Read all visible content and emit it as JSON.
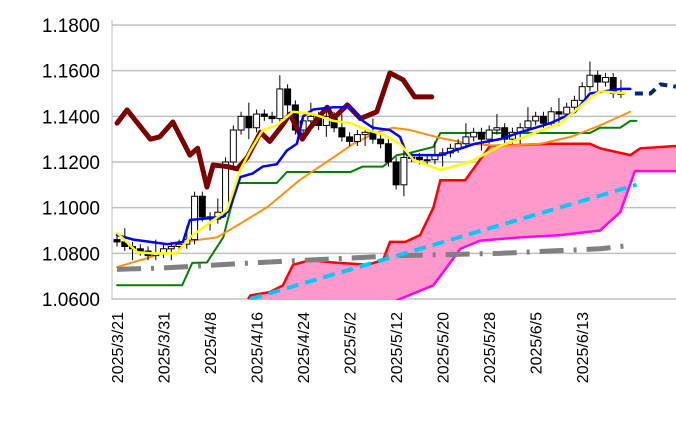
{
  "chart_data": {
    "type": "line",
    "title": "",
    "xlabel": "",
    "ylabel": "",
    "ylim": [
      1.06,
      1.18
    ],
    "yticks": [
      "1.0600",
      "1.0800",
      "1.1000",
      "1.1200",
      "1.1400",
      "1.1600",
      "1.1800"
    ],
    "ytick_values": [
      1.06,
      1.08,
      1.1,
      1.12,
      1.14,
      1.16,
      1.18
    ],
    "xlim_index": [
      -0.65,
      72.1
    ],
    "xticks": [
      {
        "i": 0,
        "label": "2025/3/21"
      },
      {
        "i": 6,
        "label": "2025/3/31"
      },
      {
        "i": 12,
        "label": "2025/4/8"
      },
      {
        "i": 18,
        "label": "2025/4/16"
      },
      {
        "i": 24,
        "label": "2025/4/24"
      },
      {
        "i": 30,
        "label": "2025/5/2"
      },
      {
        "i": 36,
        "label": "2025/5/12"
      },
      {
        "i": 42,
        "label": "2025/5/20"
      },
      {
        "i": 48,
        "label": "2025/5/28"
      },
      {
        "i": 54,
        "label": "2025/6/5"
      },
      {
        "i": 60,
        "label": "2025/6/13"
      }
    ],
    "grid": "horizontal",
    "candles": {
      "close": [
        1.085,
        1.083,
        1.082,
        1.081,
        1.079,
        1.08,
        1.082,
        1.083,
        1.084,
        1.086,
        1.105,
        1.096,
        1.095,
        1.098,
        1.12,
        1.134,
        1.14,
        1.135,
        1.141,
        1.14,
        1.139,
        1.152,
        1.145,
        1.134,
        1.138,
        1.14,
        1.136,
        1.14,
        1.135,
        1.131,
        1.129,
        1.132,
        1.133,
        1.13,
        1.128,
        1.12,
        1.11,
        1.122,
        1.122,
        1.121,
        1.121,
        1.123,
        1.124,
        1.126,
        1.128,
        1.131,
        1.133,
        1.13,
        1.134,
        1.135,
        1.13,
        1.133,
        1.135,
        1.138,
        1.14,
        1.137,
        1.142,
        1.141,
        1.144,
        1.147,
        1.153,
        1.158,
        1.155,
        1.157,
        1.15,
        1.15
      ],
      "up_color": "#ffffff",
      "down_color": "#000000"
    },
    "series": [
      {
        "name": "chikou",
        "color": "#7b0000",
        "width": 5,
        "dash": "",
        "points": [
          [
            0,
            1.137
          ],
          [
            1.3,
            1.1428
          ],
          [
            4.3,
            1.13
          ],
          [
            5.5,
            1.131
          ],
          [
            7.2,
            1.1375
          ],
          [
            9.4,
            1.123
          ],
          [
            10.4,
            1.126
          ],
          [
            11.6,
            1.109
          ],
          [
            12.4,
            1.1187
          ],
          [
            14.2,
            1.118
          ],
          [
            15.5,
            1.117
          ],
          [
            16.8,
            1.122
          ],
          [
            18.5,
            1.133
          ],
          [
            19.7,
            1.129
          ],
          [
            21.3,
            1.136
          ],
          [
            22.3,
            1.141
          ],
          [
            23.9,
            1.13
          ],
          [
            24.9,
            1.135
          ],
          [
            27.1,
            1.144
          ],
          [
            27.9,
            1.139
          ],
          [
            29.7,
            1.145
          ],
          [
            31.4,
            1.139
          ],
          [
            33.5,
            1.142
          ],
          [
            35.2,
            1.159
          ],
          [
            36.9,
            1.156
          ],
          [
            38.4,
            1.1485
          ],
          [
            40.6,
            1.1485
          ]
        ]
      },
      {
        "name": "tenkan",
        "color": "#0000ff",
        "width": 2.5,
        "dash": "",
        "points": [
          [
            0,
            1.088
          ],
          [
            2.1,
            1.086
          ],
          [
            4.3,
            1.085
          ],
          [
            6.5,
            1.084
          ],
          [
            8.5,
            1.085
          ],
          [
            9.4,
            1.0946
          ],
          [
            13.7,
            1.096
          ],
          [
            14.6,
            1.1
          ],
          [
            15.9,
            1.1134
          ],
          [
            17.5,
            1.115
          ],
          [
            18.8,
            1.118
          ],
          [
            20.6,
            1.119
          ],
          [
            21.9,
            1.125
          ],
          [
            23.2,
            1.128
          ],
          [
            24,
            1.14
          ],
          [
            25.3,
            1.143
          ],
          [
            27.9,
            1.144
          ],
          [
            30.1,
            1.144
          ],
          [
            31.7,
            1.138
          ],
          [
            33,
            1.135
          ],
          [
            35.2,
            1.134
          ],
          [
            36.5,
            1.131
          ],
          [
            37.4,
            1.123
          ],
          [
            41.7,
            1.123
          ],
          [
            46.2,
            1.128
          ],
          [
            49.4,
            1.13
          ],
          [
            52,
            1.133
          ],
          [
            55.9,
            1.137
          ],
          [
            59.1,
            1.142
          ],
          [
            61,
            1.15
          ],
          [
            64.9,
            1.152
          ],
          [
            66.2,
            1.152
          ]
        ]
      },
      {
        "name": "kijun",
        "color": "#008000",
        "width": 2,
        "dash": "",
        "points": [
          [
            0,
            1.066
          ],
          [
            8.4,
            1.066
          ],
          [
            9.7,
            1.0758
          ],
          [
            11.6,
            1.076
          ],
          [
            13.7,
            1.087
          ],
          [
            15.5,
            1.1108
          ],
          [
            20.6,
            1.1108
          ],
          [
            21.9,
            1.1156
          ],
          [
            30.1,
            1.1156
          ],
          [
            31.7,
            1.118
          ],
          [
            34.3,
            1.118
          ],
          [
            36.1,
            1.123
          ],
          [
            37.8,
            1.124
          ],
          [
            40.8,
            1.1266
          ],
          [
            41.7,
            1.1327
          ],
          [
            61,
            1.1327
          ],
          [
            62.3,
            1.135
          ],
          [
            64.9,
            1.135
          ],
          [
            66.2,
            1.138
          ],
          [
            67,
            1.138
          ]
        ]
      },
      {
        "name": "moving-average",
        "color": "#ff9010",
        "width": 2,
        "dash": "",
        "points": [
          [
            0,
            1.074
          ],
          [
            4.3,
            1.0783
          ],
          [
            8.5,
            1.085
          ],
          [
            10.7,
            1.086
          ],
          [
            12.9,
            1.087
          ],
          [
            15.9,
            1.093
          ],
          [
            19.4,
            1.1003
          ],
          [
            23.6,
            1.1122
          ],
          [
            27.9,
            1.122
          ],
          [
            30.5,
            1.128
          ],
          [
            33.5,
            1.133
          ],
          [
            35.6,
            1.135
          ],
          [
            37.8,
            1.134
          ],
          [
            41.7,
            1.1305
          ],
          [
            45.5,
            1.128
          ],
          [
            49.4,
            1.127
          ],
          [
            54.6,
            1.128
          ],
          [
            58.5,
            1.131
          ],
          [
            62.3,
            1.136
          ],
          [
            66.2,
            1.142
          ]
        ]
      },
      {
        "name": "moving-average-short",
        "color": "#ffff00",
        "width": 2.5,
        "dash": "",
        "points": [
          [
            0,
            1.089
          ],
          [
            2.6,
            1.0805
          ],
          [
            4.6,
            1.08
          ],
          [
            7.7,
            1.08
          ],
          [
            9.4,
            1.087
          ],
          [
            14.2,
            1.099
          ],
          [
            15.9,
            1.1165
          ],
          [
            17.2,
            1.125
          ],
          [
            18.8,
            1.134
          ],
          [
            20.6,
            1.136
          ],
          [
            22.7,
            1.142
          ],
          [
            25.3,
            1.141
          ],
          [
            27.9,
            1.138
          ],
          [
            30.1,
            1.137
          ],
          [
            32.3,
            1.134
          ],
          [
            34.3,
            1.132
          ],
          [
            36.5,
            1.128
          ],
          [
            38.2,
            1.121
          ],
          [
            41.7,
            1.1165
          ],
          [
            45.5,
            1.12
          ],
          [
            49.4,
            1.127
          ],
          [
            53.3,
            1.132
          ],
          [
            57.2,
            1.137
          ],
          [
            61,
            1.148
          ],
          [
            62.3,
            1.151
          ],
          [
            65.5,
            1.15
          ]
        ]
      },
      {
        "name": "long-moving-average",
        "color": "#808080",
        "width": 5,
        "dash": "24 10 3 10",
        "points": [
          [
            0,
            1.073
          ],
          [
            5.5,
            1.0735
          ],
          [
            18.5,
            1.076
          ],
          [
            36.5,
            1.079
          ],
          [
            49.4,
            1.08
          ],
          [
            62.3,
            1.082
          ],
          [
            66.2,
            1.0835
          ]
        ]
      },
      {
        "name": "trend-line",
        "color": "#00c8ff",
        "width": 4,
        "dash": "12 7",
        "points": [
          [
            17.2,
            1.06
          ],
          [
            67,
            1.11
          ]
        ]
      },
      {
        "name": "forecast",
        "color": "#002a6e",
        "width": 4,
        "dash": "8 6",
        "points": [
          [
            66.8,
            1.15
          ],
          [
            68.8,
            1.15
          ],
          [
            70.1,
            1.154
          ],
          [
            72.1,
            1.153
          ]
        ]
      }
    ],
    "cloud": {
      "fill": "#ff99cc",
      "senkou_a": {
        "name": "senkou-span-a",
        "color": "#ff0000",
        "points": [
          [
            16.9,
            1.06
          ],
          [
            17.2,
            1.0616
          ],
          [
            19.7,
            1.063
          ],
          [
            21.4,
            1.066
          ],
          [
            22.7,
            1.075
          ],
          [
            24.9,
            1.077
          ],
          [
            27.9,
            1.076
          ],
          [
            32.3,
            1.075
          ],
          [
            34.3,
            1.077
          ],
          [
            35.2,
            1.085
          ],
          [
            37.2,
            1.085
          ],
          [
            39.1,
            1.088
          ],
          [
            40.8,
            1.1
          ],
          [
            41.7,
            1.112
          ],
          [
            44.9,
            1.112
          ],
          [
            48.1,
            1.127
          ],
          [
            55.9,
            1.128
          ],
          [
            61,
            1.128
          ],
          [
            62.3,
            1.126
          ],
          [
            66.2,
            1.123
          ],
          [
            67.5,
            1.126
          ],
          [
            72.1,
            1.127
          ]
        ]
      },
      "senkou_b": {
        "name": "senkou-span-b",
        "color": "#ff00ff",
        "points": [
          [
            16.9,
            1.058
          ],
          [
            35.2,
            1.058
          ],
          [
            36.5,
            1.06
          ],
          [
            40.8,
            1.066
          ],
          [
            44.3,
            1.082
          ],
          [
            46.8,
            1.0855
          ],
          [
            52,
            1.087
          ],
          [
            57.2,
            1.088
          ],
          [
            62.3,
            1.09
          ],
          [
            64.9,
            1.098
          ],
          [
            66.8,
            1.116
          ],
          [
            72.1,
            1.116
          ]
        ]
      }
    }
  }
}
